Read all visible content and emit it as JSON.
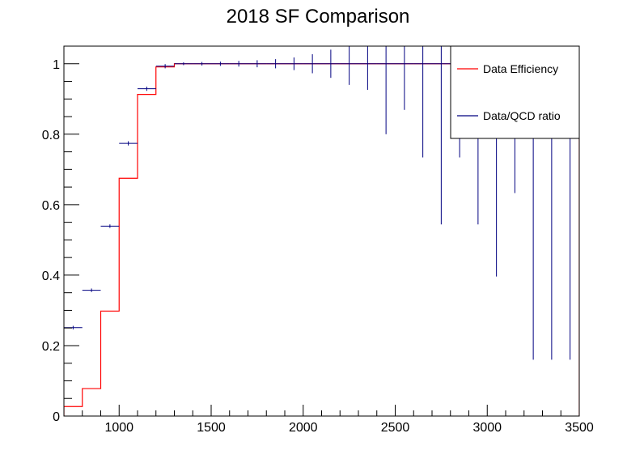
{
  "chart_data": {
    "type": "line",
    "title": "2018 SF Comparison",
    "xlabel": "",
    "ylabel": "",
    "xlim": [
      700,
      3500
    ],
    "ylim": [
      0,
      1.05
    ],
    "grid": false,
    "legend_position": "top-right",
    "x_ticks": [
      "1000",
      "1500",
      "2000",
      "2500",
      "3000",
      "3500"
    ],
    "y_ticks": [
      "0",
      "0.2",
      "0.4",
      "0.6",
      "0.8",
      "1"
    ],
    "series": [
      {
        "name": "Data Efficiency",
        "color": "#ff0000",
        "style": "histogram-step",
        "bins": [
          [
            700,
            800
          ],
          [
            800,
            900
          ],
          [
            900,
            1000
          ],
          [
            1000,
            1100
          ],
          [
            1100,
            1200
          ],
          [
            1200,
            1300
          ],
          [
            1300,
            3500
          ]
        ],
        "values": [
          0.027,
          0.078,
          0.298,
          0.675,
          0.913,
          0.991,
          1.0
        ]
      },
      {
        "name": "Data/QCD ratio",
        "color": "#000080",
        "style": "error-bars",
        "x": [
          750,
          850,
          950,
          1050,
          1150,
          1250,
          1350,
          1450,
          1550,
          1650,
          1750,
          1850,
          1950,
          2050,
          2150,
          2250,
          2350,
          2450,
          2550,
          2650,
          2750,
          2850,
          2950,
          3050,
          3150,
          3250,
          3350,
          3450
        ],
        "x_half_width": 50,
        "y": [
          0.251,
          0.357,
          0.539,
          0.774,
          0.929,
          0.993,
          1.0,
          1.0,
          1.0,
          1.0,
          1.0,
          1.0,
          1.0,
          1.0,
          1.0,
          1.0,
          1.0,
          1.0,
          1.0,
          1.0,
          1.0,
          1.0,
          1.0,
          1.0,
          1.0,
          1.0,
          1.0,
          1.0
        ],
        "y_err_low": [
          0.005,
          0.005,
          0.005,
          0.006,
          0.006,
          0.006,
          0.004,
          0.005,
          0.006,
          0.008,
          0.01,
          0.013,
          0.018,
          0.027,
          0.04,
          0.06,
          0.074,
          0.2,
          0.131,
          0.266,
          0.456,
          0.266,
          0.456,
          0.604,
          0.367,
          0.84,
          0.84,
          0.84
        ],
        "y_err_high": [
          0.005,
          0.005,
          0.005,
          0.006,
          0.006,
          0.006,
          0.004,
          0.005,
          0.006,
          0.008,
          0.01,
          0.013,
          0.018,
          0.027,
          0.04,
          0.06,
          0.074,
          0.2,
          0.131,
          0.266,
          0.456,
          0.266,
          0.456,
          0.604,
          0.367,
          0.84,
          0.84,
          0.84
        ]
      }
    ]
  }
}
